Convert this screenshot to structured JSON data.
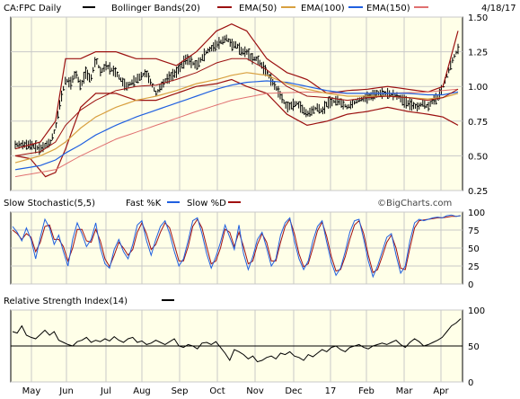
{
  "header": {
    "symbol": "CA:FPC Daily",
    "date": "4/18/17",
    "legend": [
      {
        "label": "Bollinger Bands(20)",
        "color": "#8B1010"
      },
      {
        "label": "EMA(50)",
        "color": "#9B1010"
      },
      {
        "label": "EMA(100)",
        "color": "#D8A040"
      },
      {
        "label": "EMA(150)",
        "color": "#2060E0"
      }
    ],
    "last_swatch_color": "#E07070",
    "symbol_swatch_color": "#000000"
  },
  "stoch_panel": {
    "title": "Slow Stochastic(5,5)",
    "fast_label": "Fast %K",
    "slow_label": "Slow %D",
    "fast_color": "#2060E0",
    "slow_color": "#A01010",
    "watermark": "©BigCharts.com"
  },
  "rsi_panel": {
    "title": "Relative Strength Index(14)",
    "color": "#000000"
  },
  "colors": {
    "panel_bg": "#FFFFE8",
    "grid": "#C8C8C8",
    "border": "#000000"
  },
  "chart_data": [
    {
      "type": "ohlc",
      "title": "CA:FPC Daily",
      "ylim": [
        0.25,
        1.5
      ],
      "yticks": [
        "1.50",
        "1.25",
        "1.00",
        "0.75",
        "0.50",
        "0.25"
      ],
      "ytick_values": [
        1.5,
        1.25,
        1.0,
        0.75,
        0.5,
        0.25
      ],
      "xticks": [
        "May",
        "Jun",
        "Jul",
        "Aug",
        "Sep",
        "Oct",
        "Nov",
        "Dec",
        "17",
        "Feb",
        "Mar",
        "Apr"
      ],
      "price_anchors": [
        [
          0,
          0.58
        ],
        [
          3,
          0.58
        ],
        [
          5,
          0.55
        ],
        [
          7,
          0.6
        ],
        [
          8,
          0.7
        ],
        [
          9,
          0.9
        ],
        [
          10,
          1.05
        ],
        [
          11,
          1.02
        ],
        [
          12,
          1.1
        ],
        [
          13,
          1.0
        ],
        [
          14,
          1.1
        ],
        [
          15,
          1.05
        ],
        [
          16,
          1.2
        ],
        [
          17,
          1.1
        ],
        [
          18,
          1.15
        ],
        [
          20,
          1.1
        ],
        [
          22,
          1.0
        ],
        [
          24,
          1.05
        ],
        [
          26,
          1.1
        ],
        [
          28,
          0.95
        ],
        [
          30,
          1.05
        ],
        [
          32,
          1.1
        ],
        [
          34,
          1.2
        ],
        [
          36,
          1.15
        ],
        [
          38,
          1.25
        ],
        [
          40,
          1.3
        ],
        [
          42,
          1.35
        ],
        [
          43,
          1.3
        ],
        [
          44,
          1.3
        ],
        [
          45,
          1.25
        ],
        [
          46,
          1.25
        ],
        [
          47,
          1.2
        ],
        [
          48,
          1.2
        ],
        [
          49,
          1.15
        ],
        [
          50,
          1.1
        ],
        [
          52,
          0.98
        ],
        [
          54,
          0.85
        ],
        [
          56,
          0.88
        ],
        [
          58,
          0.8
        ],
        [
          60,
          0.85
        ],
        [
          61,
          0.82
        ],
        [
          62,
          0.88
        ],
        [
          64,
          0.9
        ],
        [
          66,
          0.85
        ],
        [
          68,
          0.9
        ],
        [
          70,
          0.92
        ],
        [
          72,
          0.95
        ],
        [
          74,
          0.95
        ],
        [
          76,
          0.93
        ],
        [
          77,
          0.9
        ],
        [
          78,
          0.88
        ],
        [
          80,
          0.85
        ],
        [
          81,
          0.88
        ],
        [
          82,
          0.85
        ],
        [
          83,
          0.9
        ],
        [
          84,
          0.92
        ],
        [
          85,
          1.0
        ],
        [
          86,
          1.1
        ],
        [
          87,
          1.2
        ],
        [
          88,
          1.27
        ]
      ],
      "range_band": 0.08,
      "bollinger_upper": [
        [
          0,
          0.55
        ],
        [
          5,
          0.6
        ],
        [
          8,
          0.75
        ],
        [
          10,
          1.2
        ],
        [
          13,
          1.2
        ],
        [
          16,
          1.25
        ],
        [
          20,
          1.25
        ],
        [
          24,
          1.2
        ],
        [
          28,
          1.2
        ],
        [
          32,
          1.15
        ],
        [
          36,
          1.25
        ],
        [
          40,
          1.4
        ],
        [
          43,
          1.45
        ],
        [
          46,
          1.4
        ],
        [
          50,
          1.2
        ],
        [
          54,
          1.1
        ],
        [
          58,
          1.05
        ],
        [
          62,
          0.95
        ],
        [
          66,
          0.97
        ],
        [
          70,
          0.98
        ],
        [
          74,
          1.0
        ],
        [
          78,
          0.98
        ],
        [
          82,
          0.96
        ],
        [
          85,
          1.0
        ],
        [
          88,
          1.4
        ]
      ],
      "bollinger_lower": [
        [
          0,
          0.5
        ],
        [
          3,
          0.48
        ],
        [
          6,
          0.35
        ],
        [
          8,
          0.38
        ],
        [
          10,
          0.55
        ],
        [
          13,
          0.85
        ],
        [
          16,
          0.95
        ],
        [
          20,
          0.95
        ],
        [
          24,
          0.9
        ],
        [
          28,
          0.9
        ],
        [
          32,
          0.95
        ],
        [
          36,
          1.0
        ],
        [
          40,
          1.02
        ],
        [
          43,
          1.05
        ],
        [
          46,
          1.0
        ],
        [
          50,
          0.95
        ],
        [
          54,
          0.8
        ],
        [
          58,
          0.72
        ],
        [
          62,
          0.75
        ],
        [
          66,
          0.8
        ],
        [
          70,
          0.82
        ],
        [
          74,
          0.85
        ],
        [
          78,
          0.82
        ],
        [
          82,
          0.8
        ],
        [
          85,
          0.78
        ],
        [
          88,
          0.72
        ]
      ],
      "ema50": [
        [
          0,
          0.5
        ],
        [
          5,
          0.53
        ],
        [
          8,
          0.6
        ],
        [
          10,
          0.72
        ],
        [
          13,
          0.83
        ],
        [
          16,
          0.9
        ],
        [
          20,
          0.97
        ],
        [
          24,
          1.0
        ],
        [
          28,
          1.01
        ],
        [
          32,
          1.05
        ],
        [
          36,
          1.1
        ],
        [
          40,
          1.17
        ],
        [
          43,
          1.2
        ],
        [
          46,
          1.2
        ],
        [
          50,
          1.12
        ],
        [
          54,
          1.0
        ],
        [
          58,
          0.93
        ],
        [
          62,
          0.92
        ],
        [
          66,
          0.9
        ],
        [
          70,
          0.92
        ],
        [
          74,
          0.93
        ],
        [
          78,
          0.92
        ],
        [
          82,
          0.9
        ],
        [
          85,
          0.92
        ],
        [
          88,
          0.98
        ]
      ],
      "ema100": [
        [
          0,
          0.45
        ],
        [
          5,
          0.5
        ],
        [
          8,
          0.55
        ],
        [
          10,
          0.6
        ],
        [
          13,
          0.7
        ],
        [
          16,
          0.78
        ],
        [
          20,
          0.85
        ],
        [
          24,
          0.9
        ],
        [
          28,
          0.93
        ],
        [
          32,
          0.97
        ],
        [
          36,
          1.02
        ],
        [
          40,
          1.05
        ],
        [
          43,
          1.08
        ],
        [
          46,
          1.1
        ],
        [
          50,
          1.08
        ],
        [
          54,
          1.02
        ],
        [
          58,
          0.98
        ],
        [
          62,
          0.95
        ],
        [
          66,
          0.93
        ],
        [
          70,
          0.93
        ],
        [
          74,
          0.93
        ],
        [
          78,
          0.92
        ],
        [
          82,
          0.91
        ],
        [
          85,
          0.92
        ],
        [
          88,
          0.95
        ]
      ],
      "ema150": [
        [
          0,
          0.4
        ],
        [
          5,
          0.43
        ],
        [
          8,
          0.47
        ],
        [
          10,
          0.52
        ],
        [
          13,
          0.58
        ],
        [
          16,
          0.65
        ],
        [
          20,
          0.72
        ],
        [
          24,
          0.78
        ],
        [
          28,
          0.83
        ],
        [
          32,
          0.88
        ],
        [
          36,
          0.93
        ],
        [
          40,
          0.98
        ],
        [
          43,
          1.01
        ],
        [
          46,
          1.03
        ],
        [
          50,
          1.04
        ],
        [
          54,
          1.03
        ],
        [
          58,
          1.0
        ],
        [
          62,
          0.97
        ],
        [
          66,
          0.95
        ],
        [
          70,
          0.95
        ],
        [
          74,
          0.95
        ],
        [
          78,
          0.95
        ],
        [
          82,
          0.94
        ],
        [
          85,
          0.94
        ],
        [
          88,
          0.96
        ]
      ],
      "redline": [
        [
          0,
          0.35
        ],
        [
          8,
          0.4
        ],
        [
          13,
          0.5
        ],
        [
          20,
          0.62
        ],
        [
          28,
          0.72
        ],
        [
          36,
          0.82
        ],
        [
          43,
          0.9
        ],
        [
          50,
          0.95
        ],
        [
          58,
          0.96
        ],
        [
          66,
          0.95
        ],
        [
          74,
          0.95
        ],
        [
          82,
          0.96
        ],
        [
          88,
          0.98
        ]
      ]
    },
    {
      "type": "line",
      "title": "Slow Stochastic(5,5)",
      "ylim": [
        0,
        100
      ],
      "yticks": [
        "100",
        "75",
        "50",
        "25",
        "0"
      ],
      "ytick_values": [
        100,
        75,
        50,
        25,
        0
      ],
      "series": [
        {
          "name": "Fast %K",
          "values": [
            80,
            72,
            60,
            78,
            62,
            35,
            65,
            90,
            78,
            55,
            68,
            45,
            25,
            62,
            85,
            70,
            52,
            62,
            85,
            50,
            28,
            22,
            48,
            62,
            45,
            35,
            55,
            82,
            88,
            60,
            40,
            62,
            80,
            88,
            70,
            45,
            25,
            35,
            60,
            88,
            92,
            70,
            42,
            22,
            38,
            58,
            82,
            65,
            48,
            82,
            42,
            20,
            38,
            62,
            72,
            50,
            25,
            35,
            68,
            85,
            92,
            60,
            35,
            20,
            32,
            60,
            80,
            88,
            58,
            30,
            12,
            22,
            45,
            72,
            88,
            90,
            62,
            32,
            10,
            25,
            45,
            65,
            70,
            40,
            15,
            25,
            60,
            85,
            90,
            88,
            90,
            92,
            93,
            92,
            95,
            96,
            94,
            95
          ]
        },
        {
          "name": "Slow %D",
          "values": [
            75,
            70,
            62,
            70,
            65,
            45,
            58,
            80,
            82,
            62,
            62,
            52,
            32,
            50,
            76,
            76,
            60,
            58,
            76,
            60,
            35,
            24,
            40,
            58,
            50,
            40,
            48,
            72,
            85,
            70,
            48,
            55,
            72,
            85,
            78,
            55,
            32,
            32,
            52,
            80,
            90,
            78,
            52,
            28,
            32,
            50,
            76,
            72,
            52,
            72,
            52,
            28,
            32,
            55,
            70,
            58,
            32,
            32,
            58,
            80,
            90,
            70,
            42,
            24,
            28,
            50,
            74,
            86,
            66,
            38,
            18,
            20,
            38,
            62,
            82,
            88,
            70,
            40,
            16,
            20,
            38,
            58,
            68,
            50,
            22,
            20,
            50,
            78,
            88,
            89,
            90,
            91,
            92,
            92,
            93,
            94,
            94,
            95
          ]
        }
      ]
    },
    {
      "type": "line",
      "title": "Relative Strength Index(14)",
      "ylim": [
        0,
        100
      ],
      "yticks": [
        "100",
        "50",
        "0"
      ],
      "ytick_values": [
        100,
        50,
        0
      ],
      "reference_line": 50,
      "series": [
        {
          "name": "Relative Strength Index(14)",
          "values": [
            70,
            68,
            78,
            65,
            62,
            60,
            66,
            72,
            65,
            70,
            58,
            55,
            52,
            50,
            56,
            58,
            62,
            55,
            58,
            56,
            60,
            57,
            63,
            58,
            55,
            60,
            62,
            55,
            57,
            52,
            54,
            58,
            55,
            52,
            56,
            60,
            50,
            48,
            52,
            50,
            46,
            54,
            55,
            52,
            56,
            48,
            40,
            30,
            45,
            42,
            38,
            32,
            36,
            28,
            30,
            34,
            36,
            32,
            40,
            38,
            42,
            36,
            34,
            30,
            38,
            35,
            40,
            45,
            42,
            48,
            50,
            45,
            42,
            48,
            50,
            52,
            48,
            46,
            50,
            52,
            54,
            52,
            55,
            58,
            52,
            48,
            55,
            60,
            56,
            50,
            52,
            55,
            58,
            62,
            70,
            78,
            82,
            88
          ]
        }
      ]
    }
  ]
}
